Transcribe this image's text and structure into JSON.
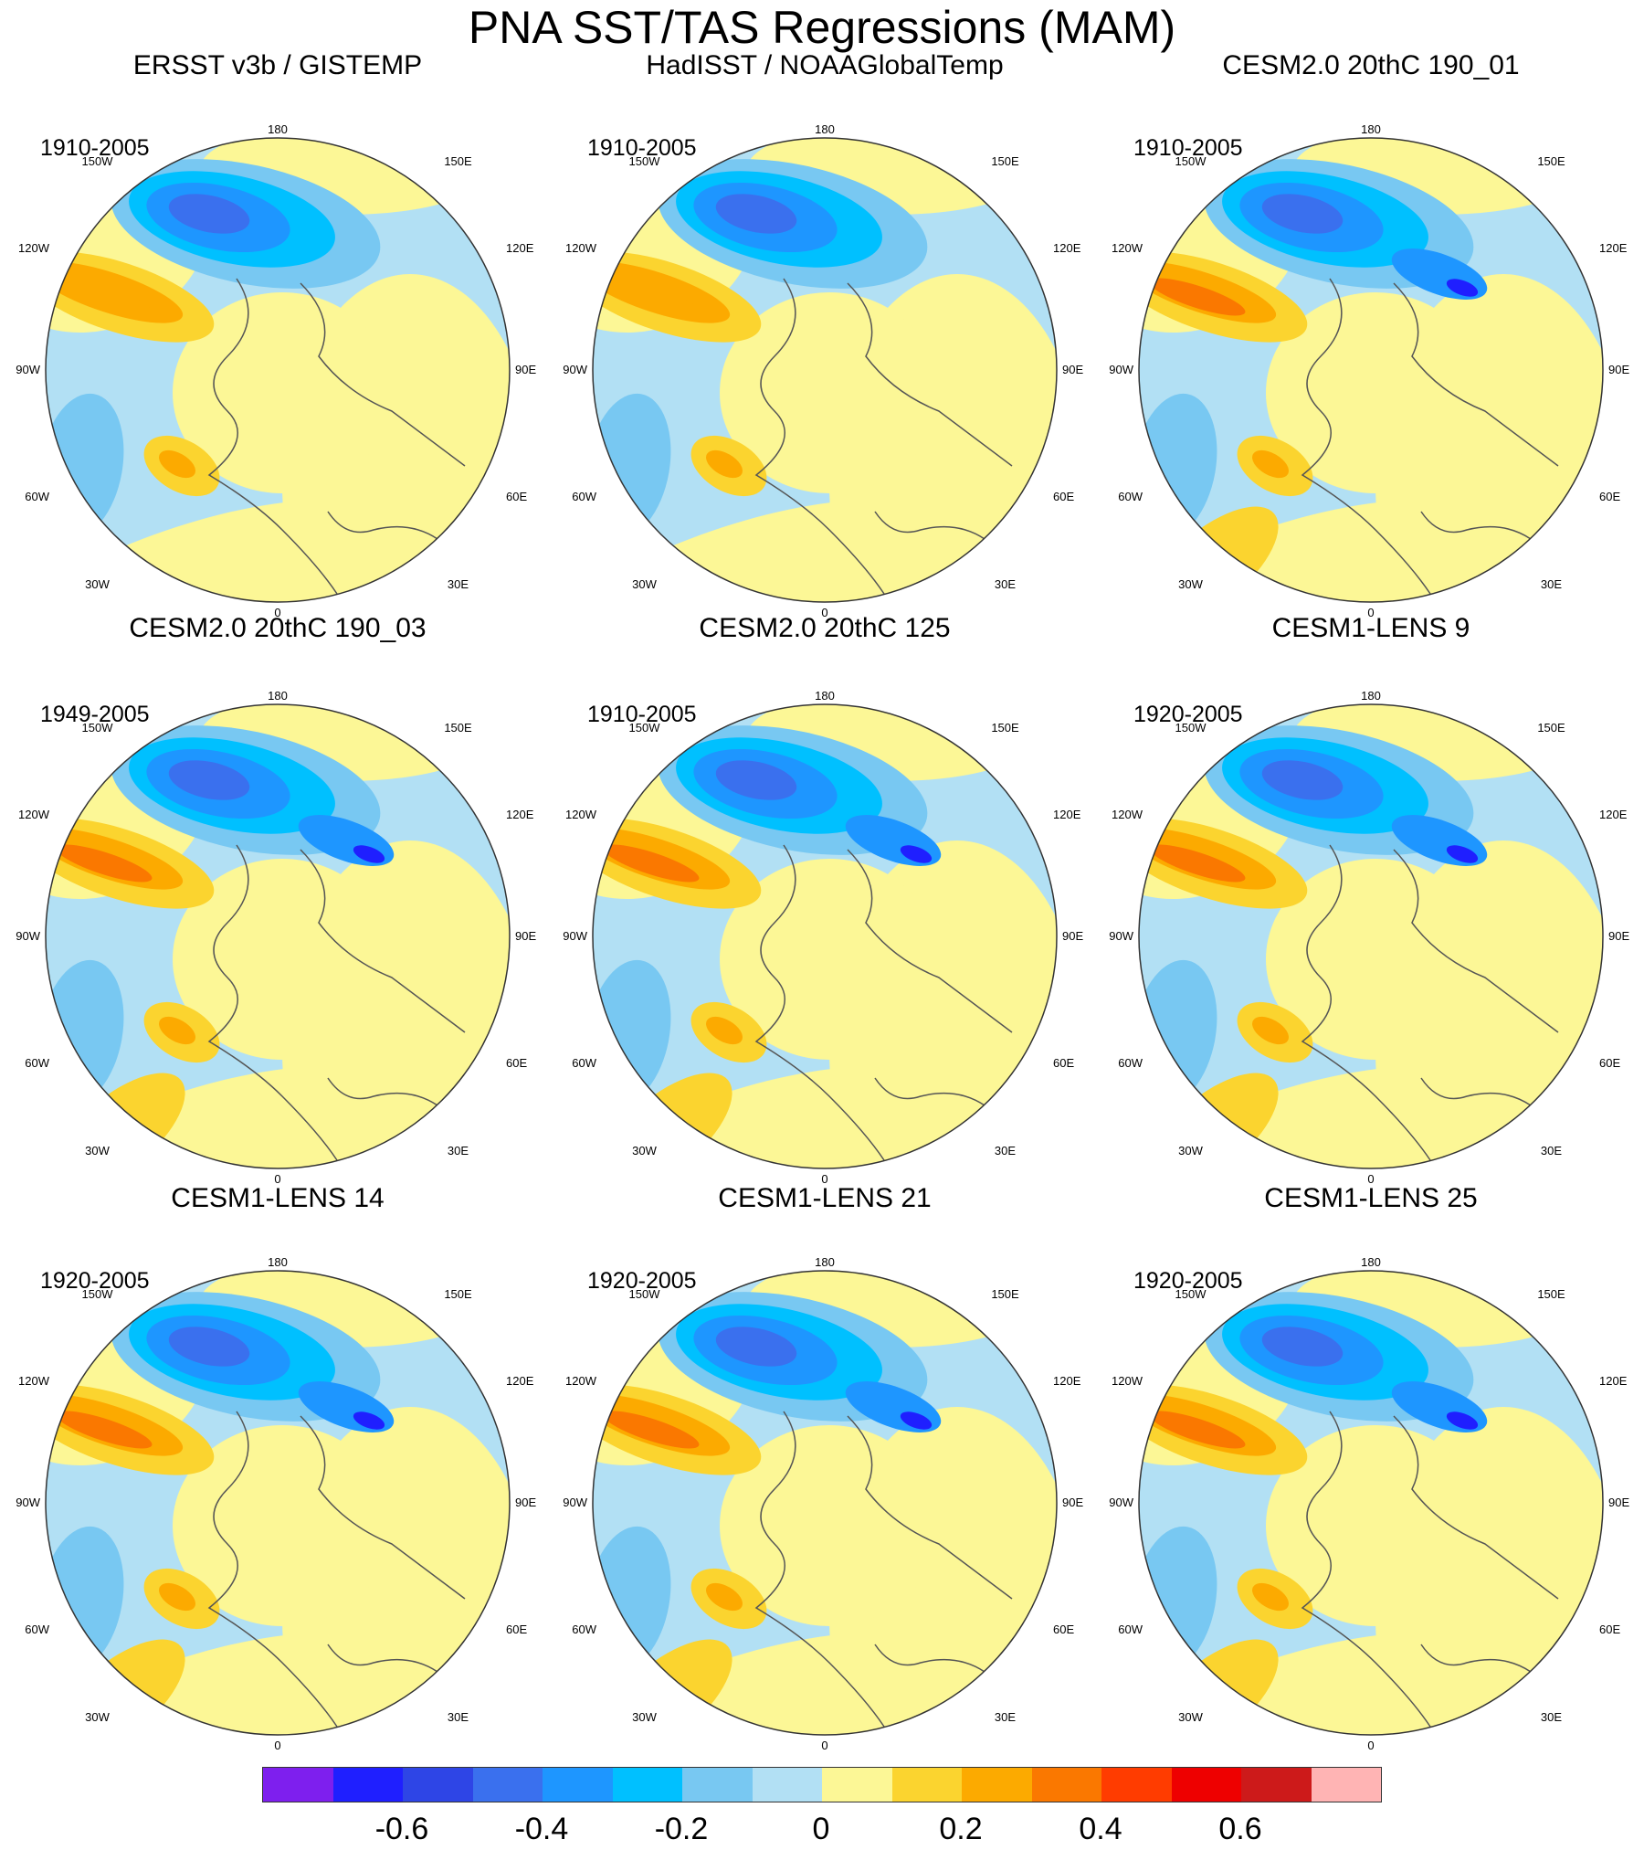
{
  "title": "PNA SST/TAS Regressions (MAM)",
  "lon_labels": {
    "top": "180",
    "bottom": "0",
    "upper_left": "150W",
    "upper_right": "150E",
    "mid_upper_left": "120W",
    "mid_upper_right": "120E",
    "left": "90W",
    "right": "90E",
    "mid_lower_left": "60W",
    "mid_lower_right": "60E",
    "lower_left": "30W",
    "lower_right": "30E"
  },
  "panels": [
    {
      "title": "ERSST v3b / GISTEMP",
      "period": "1910-2005",
      "pattern": "obs"
    },
    {
      "title": "HadISST / NOAAGlobalTemp",
      "period": "1910-2005",
      "pattern": "obs"
    },
    {
      "title": "CESM2.0 20thC 190_01",
      "period": "1910-2005",
      "pattern": "model"
    },
    {
      "title": "CESM2.0 20thC 190_03",
      "period": "1949-2005",
      "pattern": "model"
    },
    {
      "title": "CESM2.0 20thC 125",
      "period": "1910-2005",
      "pattern": "model"
    },
    {
      "title": "CESM1-LENS 9",
      "period": "1920-2005",
      "pattern": "model"
    },
    {
      "title": "CESM1-LENS 14",
      "period": "1920-2005",
      "pattern": "model"
    },
    {
      "title": "CESM1-LENS 21",
      "period": "1920-2005",
      "pattern": "model"
    },
    {
      "title": "CESM1-LENS 25",
      "period": "1920-2005",
      "pattern": "model"
    }
  ],
  "colorbar": {
    "colors": [
      "#7e1fee",
      "#1f1fff",
      "#2e45e6",
      "#3a70ee",
      "#1e96ff",
      "#00c0ff",
      "#78c8f2",
      "#b2e0f4",
      "#fcf796",
      "#fbd42f",
      "#fcaa00",
      "#fa7800",
      "#ff3c00",
      "#ee0000",
      "#cd1a1a",
      "#ffb4b4"
    ],
    "labels": [
      "-0.6",
      "-0.4",
      "-0.2",
      "0",
      "0.2",
      "0.4",
      "0.6"
    ],
    "label_values": [
      -0.6,
      -0.4,
      -0.2,
      0,
      0.2,
      0.4,
      0.6
    ],
    "min": -0.8,
    "max": 0.8
  }
}
